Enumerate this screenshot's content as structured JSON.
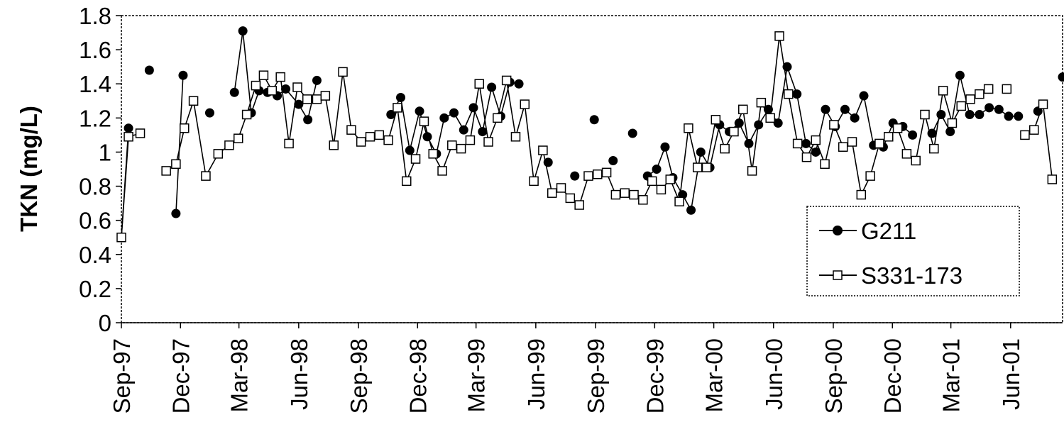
{
  "chart_data": {
    "type": "line",
    "ylabel": "TKN (mg/L)",
    "xlabel": "",
    "ylim": [
      0,
      1.8
    ],
    "yticks": [
      "0",
      "0.2",
      "0.4",
      "0.6",
      "0.8",
      "1",
      "1.2",
      "1.4",
      "1.6",
      "1.8"
    ],
    "xlim": [
      "1997-09-01",
      "2001-08-20"
    ],
    "xticks": [
      {
        "date": "1997-09-01",
        "label": "Sep-97"
      },
      {
        "date": "1997-12-01",
        "label": "Dec-97"
      },
      {
        "date": "1998-03-01",
        "label": "Mar-98"
      },
      {
        "date": "1998-06-01",
        "label": "Jun-98"
      },
      {
        "date": "1998-09-01",
        "label": "Sep-98"
      },
      {
        "date": "1998-12-01",
        "label": "Dec-98"
      },
      {
        "date": "1999-03-01",
        "label": "Mar-99"
      },
      {
        "date": "1999-06-01",
        "label": "Jun-99"
      },
      {
        "date": "1999-09-01",
        "label": "Sep-99"
      },
      {
        "date": "1999-12-01",
        "label": "Dec-99"
      },
      {
        "date": "2000-03-01",
        "label": "Mar-00"
      },
      {
        "date": "2000-06-01",
        "label": "Jun-00"
      },
      {
        "date": "2000-09-01",
        "label": "Sep-00"
      },
      {
        "date": "2000-12-01",
        "label": "Dec-00"
      },
      {
        "date": "2001-03-01",
        "label": "Mar-01"
      },
      {
        "date": "2001-06-01",
        "label": "Jun-01"
      }
    ],
    "grid": false,
    "legend_position": "bottom-right",
    "series": [
      {
        "name": "G211",
        "marker": "filled-circle",
        "color": "#000000",
        "points": [
          [
            "1997-09-01",
            0.5
          ],
          [
            "1997-09-12",
            1.14
          ],
          [
            "1997-10-14",
            1.48
          ],
          [
            "1997-11-24",
            0.64
          ],
          [
            "1997-12-05",
            1.45
          ],
          [
            "1998-01-15",
            1.23
          ],
          [
            "1998-02-22",
            1.35
          ],
          [
            "1998-03-07",
            1.71
          ],
          [
            "1998-03-20",
            1.23
          ],
          [
            "1998-04-01",
            1.36
          ],
          [
            "1998-04-14",
            1.35
          ],
          [
            "1998-04-29",
            1.33
          ],
          [
            "1998-05-12",
            1.37
          ],
          [
            "1998-06-01",
            1.28
          ],
          [
            "1998-06-15",
            1.19
          ],
          [
            "1998-06-29",
            1.42
          ],
          [
            "1998-10-21",
            1.22
          ],
          [
            "1998-11-05",
            1.32
          ],
          [
            "1998-11-19",
            1.01
          ],
          [
            "1998-12-04",
            1.24
          ],
          [
            "1998-12-16",
            1.09
          ],
          [
            "1998-12-30",
            0.99
          ],
          [
            "1999-01-11",
            1.2
          ],
          [
            "1999-01-26",
            1.23
          ],
          [
            "1999-02-10",
            1.13
          ],
          [
            "1999-02-25",
            1.26
          ],
          [
            "1999-03-11",
            1.12
          ],
          [
            "1999-03-25",
            1.38
          ],
          [
            "1999-04-08",
            1.21
          ],
          [
            "1999-04-22",
            1.41
          ],
          [
            "1999-05-06",
            1.4
          ],
          [
            "1999-06-20",
            0.94
          ],
          [
            "1999-07-31",
            0.86
          ],
          [
            "1999-08-30",
            1.19
          ],
          [
            "1999-09-28",
            0.95
          ],
          [
            "1999-10-28",
            1.11
          ],
          [
            "1999-11-20",
            0.86
          ],
          [
            "1999-12-04",
            0.9
          ],
          [
            "1999-12-17",
            1.03
          ],
          [
            "1999-12-29",
            0.85
          ],
          [
            "2000-01-13",
            0.75
          ],
          [
            "2000-01-26",
            0.66
          ],
          [
            "2000-02-10",
            1.0
          ],
          [
            "2000-02-24",
            0.91
          ],
          [
            "2000-03-10",
            1.16
          ],
          [
            "2000-03-25",
            1.12
          ],
          [
            "2000-04-09",
            1.17
          ],
          [
            "2000-04-24",
            1.05
          ],
          [
            "2000-05-09",
            1.16
          ],
          [
            "2000-05-24",
            1.25
          ],
          [
            "2000-06-08",
            1.17
          ],
          [
            "2000-06-22",
            1.5
          ],
          [
            "2000-07-07",
            1.34
          ],
          [
            "2000-07-21",
            1.05
          ],
          [
            "2000-08-05",
            1.0
          ],
          [
            "2000-08-20",
            1.25
          ],
          [
            "2000-09-04",
            1.15
          ],
          [
            "2000-09-19",
            1.25
          ],
          [
            "2000-10-04",
            1.2
          ],
          [
            "2000-10-18",
            1.33
          ],
          [
            "2000-11-02",
            1.04
          ],
          [
            "2000-11-17",
            1.03
          ],
          [
            "2000-12-02",
            1.17
          ],
          [
            "2000-12-17",
            1.15
          ],
          [
            "2001-01-01",
            1.1
          ],
          [
            "2001-01-31",
            1.11
          ],
          [
            "2001-02-14",
            1.22
          ],
          [
            "2001-02-28",
            1.12
          ],
          [
            "2001-03-15",
            1.45
          ],
          [
            "2001-03-30",
            1.22
          ],
          [
            "2001-04-14",
            1.22
          ],
          [
            "2001-04-29",
            1.26
          ],
          [
            "2001-05-14",
            1.25
          ],
          [
            "2001-05-29",
            1.21
          ],
          [
            "2001-06-13",
            1.21
          ],
          [
            "2001-07-13",
            1.24
          ],
          [
            "2001-08-20",
            1.44
          ]
        ]
      },
      {
        "name": "S331-173",
        "marker": "open-square",
        "color": "#000000",
        "points": [
          [
            "1997-09-01",
            0.5
          ],
          [
            "1997-09-12",
            1.09
          ],
          [
            "1997-09-30",
            1.11
          ],
          [
            "1997-11-09",
            0.89
          ],
          [
            "1997-11-24",
            0.93
          ],
          [
            "1997-12-07",
            1.14
          ],
          [
            "1997-12-21",
            1.3
          ],
          [
            "1998-01-09",
            0.86
          ],
          [
            "1998-01-28",
            0.99
          ],
          [
            "1998-02-14",
            1.04
          ],
          [
            "1998-02-28",
            1.08
          ],
          [
            "1998-03-13",
            1.22
          ],
          [
            "1998-03-27",
            1.39
          ],
          [
            "1998-04-08",
            1.45
          ],
          [
            "1998-04-21",
            1.36
          ],
          [
            "1998-05-04",
            1.44
          ],
          [
            "1998-05-17",
            1.05
          ],
          [
            "1998-05-30",
            1.38
          ],
          [
            "1998-06-14",
            1.31
          ],
          [
            "1998-06-29",
            1.31
          ],
          [
            "1998-07-12",
            1.33
          ],
          [
            "1998-07-25",
            1.04
          ],
          [
            "1998-08-08",
            1.47
          ],
          [
            "1998-08-21",
            1.13
          ],
          [
            "1998-09-05",
            1.06
          ],
          [
            "1998-09-19",
            1.09
          ],
          [
            "1998-10-03",
            1.1
          ],
          [
            "1998-10-17",
            1.07
          ],
          [
            "1998-10-31",
            1.26
          ],
          [
            "1998-11-14",
            0.83
          ],
          [
            "1998-11-28",
            0.96
          ],
          [
            "1998-12-11",
            1.18
          ],
          [
            "1998-12-25",
            0.99
          ],
          [
            "1999-01-08",
            0.89
          ],
          [
            "1999-01-23",
            1.04
          ],
          [
            "1999-02-06",
            1.02
          ],
          [
            "1999-02-20",
            1.07
          ],
          [
            "1999-03-06",
            1.4
          ],
          [
            "1999-03-20",
            1.06
          ],
          [
            "1999-04-03",
            1.2
          ],
          [
            "1999-04-17",
            1.42
          ],
          [
            "1999-05-01",
            1.09
          ],
          [
            "1999-05-15",
            1.28
          ],
          [
            "1999-05-29",
            0.83
          ],
          [
            "1999-06-12",
            1.01
          ],
          [
            "1999-06-26",
            0.76
          ],
          [
            "1999-07-10",
            0.79
          ],
          [
            "1999-07-24",
            0.73
          ],
          [
            "1999-08-07",
            0.69
          ],
          [
            "1999-08-21",
            0.86
          ],
          [
            "1999-09-04",
            0.87
          ],
          [
            "1999-09-18",
            0.88
          ],
          [
            "1999-10-02",
            0.75
          ],
          [
            "1999-10-16",
            0.76
          ],
          [
            "1999-10-30",
            0.75
          ],
          [
            "1999-11-13",
            0.72
          ],
          [
            "1999-11-27",
            0.83
          ],
          [
            "1999-12-11",
            0.78
          ],
          [
            "1999-12-25",
            0.84
          ],
          [
            "2000-01-08",
            0.71
          ],
          [
            "2000-01-22",
            1.14
          ],
          [
            "2000-02-05",
            0.91
          ],
          [
            "2000-02-19",
            0.91
          ],
          [
            "2000-03-04",
            1.19
          ],
          [
            "2000-03-18",
            1.02
          ],
          [
            "2000-04-01",
            1.12
          ],
          [
            "2000-04-15",
            1.25
          ],
          [
            "2000-04-29",
            0.89
          ],
          [
            "2000-05-13",
            1.29
          ],
          [
            "2000-05-27",
            1.2
          ],
          [
            "2000-06-10",
            1.68
          ],
          [
            "2000-06-24",
            1.34
          ],
          [
            "2000-07-08",
            1.05
          ],
          [
            "2000-07-22",
            0.97
          ],
          [
            "2000-08-05",
            1.07
          ],
          [
            "2000-08-19",
            0.93
          ],
          [
            "2000-09-02",
            1.16
          ],
          [
            "2000-09-16",
            1.03
          ],
          [
            "2000-09-30",
            1.06
          ],
          [
            "2000-10-14",
            0.75
          ],
          [
            "2000-10-28",
            0.86
          ],
          [
            "2000-11-11",
            1.05
          ],
          [
            "2000-11-25",
            1.09
          ],
          [
            "2000-12-09",
            1.14
          ],
          [
            "2000-12-23",
            0.99
          ],
          [
            "2001-01-06",
            0.95
          ],
          [
            "2001-01-20",
            1.22
          ],
          [
            "2001-02-03",
            1.02
          ],
          [
            "2001-02-17",
            1.36
          ],
          [
            "2001-03-03",
            1.17
          ],
          [
            "2001-03-17",
            1.27
          ],
          [
            "2001-03-31",
            1.31
          ],
          [
            "2001-04-14",
            1.34
          ],
          [
            "2001-04-28",
            1.37
          ],
          [
            "2001-05-26",
            1.37
          ],
          [
            "2001-06-23",
            1.1
          ],
          [
            "2001-07-07",
            1.13
          ],
          [
            "2001-07-21",
            1.28
          ],
          [
            "2001-08-04",
            0.84
          ]
        ]
      }
    ]
  }
}
